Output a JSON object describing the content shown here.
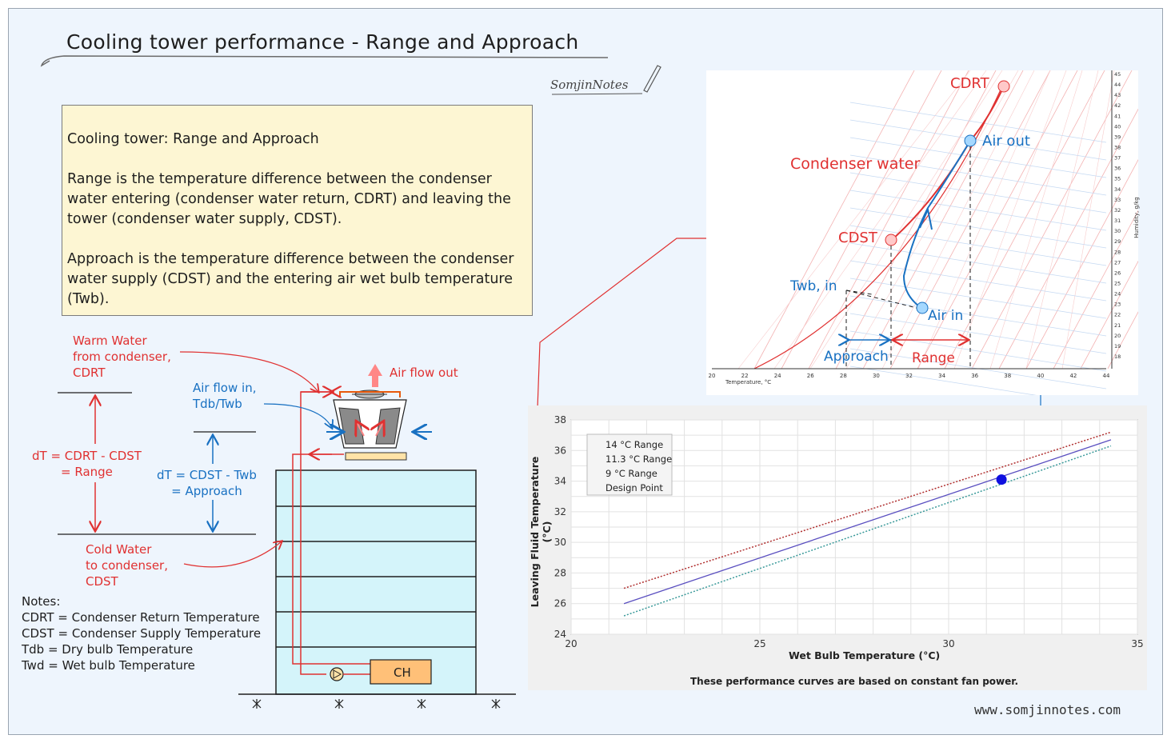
{
  "title": "Cooling tower performance - Range and Approach",
  "brand": "SomjinNotes",
  "website": "www.somjinnotes.com",
  "note": {
    "heading": "Cooling tower: Range and Approach",
    "range_text": "Range is the temperature difference between the condenser water entering (condenser water return, CDRT) and leaving the tower (condenser water supply, CDST).",
    "approach_text": "Approach is the temperature difference between the condenser water supply (CDST) and the entering air wet bulb temperature (Twb)."
  },
  "diagram": {
    "warm_water": [
      "Warm Water",
      "from condenser,",
      "CDRT"
    ],
    "air_flow_out": "Air flow out",
    "air_flow_in": [
      "Air flow in,",
      "Tdb/Twb"
    ],
    "range_eq": [
      "dT = CDRT - CDST",
      "= Range"
    ],
    "approach_eq": [
      "dT = CDST - Twb",
      "= Approach"
    ],
    "cold_water": [
      "Cold Water",
      "to condenser,",
      "CDST"
    ],
    "chiller": "CH"
  },
  "notes": {
    "heading": "Notes:",
    "items": [
      "CDRT = Condenser Return Temperature",
      "CDST = Condenser Supply Temperature",
      "Tdb = Dry bulb Temperature",
      "Twd = Wet bulb Temperature"
    ]
  },
  "psychro": {
    "labels": {
      "cdrt": "CDRT",
      "air_out": "Air out",
      "condenser_water": "Condenser water",
      "cdst": "CDST",
      "twb_in": "Twb, in",
      "air_in": "Air in",
      "approach": "Approach",
      "range": "Range",
      "x_axis": "Temperature, °C",
      "y_axis": "Humidity, g/kg"
    },
    "x_ticks": [
      "20",
      "22",
      "24",
      "26",
      "28",
      "30",
      "32",
      "34",
      "36",
      "38",
      "40",
      "42",
      "44"
    ],
    "y_ticks": [
      "18",
      "19",
      "20",
      "21",
      "22",
      "23",
      "24",
      "25",
      "26",
      "27",
      "28",
      "29",
      "30",
      "31",
      "32",
      "33",
      "34",
      "35",
      "36",
      "37",
      "38",
      "39",
      "40",
      "41",
      "42",
      "43",
      "44",
      "45"
    ]
  },
  "chart_data": {
    "type": "line",
    "title": "",
    "xlabel": "Wet Bulb Temperature (°C)",
    "ylabel": "Leaving Fluid Temperature (°C)",
    "xlim": [
      20,
      35
    ],
    "ylim": [
      24,
      38
    ],
    "x_ticks": [
      20,
      25,
      30,
      35
    ],
    "y_ticks": [
      24,
      26,
      28,
      30,
      32,
      34,
      36,
      38
    ],
    "series": [
      {
        "name": "14 °C Range",
        "color": "#b03030",
        "style": "dotted",
        "x": [
          21.4,
          34.3
        ],
        "y": [
          27.0,
          37.2
        ]
      },
      {
        "name": "11.3 °C Range",
        "color": "#5a4fc0",
        "style": "solid",
        "x": [
          21.4,
          34.3
        ],
        "y": [
          26.0,
          36.7
        ]
      },
      {
        "name": "9 °C Range",
        "color": "#3a9a9a",
        "style": "dotted",
        "x": [
          21.4,
          34.3
        ],
        "y": [
          25.2,
          36.3
        ]
      }
    ],
    "design_point": {
      "name": "Design Point",
      "x": 31.4,
      "y": 34.1,
      "color": "#1010e0"
    },
    "footnote": "These performance curves are based on constant fan power."
  }
}
